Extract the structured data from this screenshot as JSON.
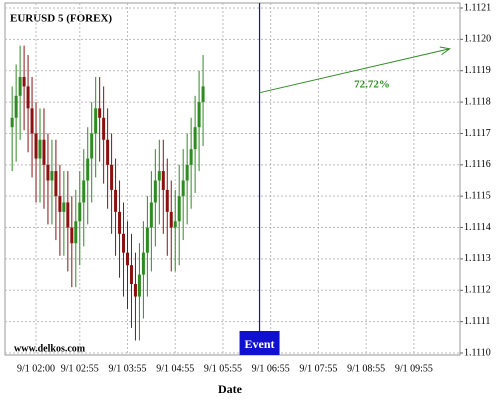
{
  "chart_data": {
    "type": "candlestick",
    "title": "EURUSD 5 (FOREX)",
    "source": "www.delkos.com",
    "x_label": "Date",
    "x": [
      "9/1 01:30",
      "9/1 01:35",
      "9/1 01:40",
      "9/1 01:45",
      "9/1 01:50",
      "9/1 01:55",
      "9/1 02:00",
      "9/1 02:05",
      "9/1 02:10",
      "9/1 02:15",
      "9/1 02:20",
      "9/1 02:25",
      "9/1 02:30",
      "9/1 02:35",
      "9/1 02:40",
      "9/1 02:45",
      "9/1 02:50",
      "9/1 02:55",
      "9/1 03:00",
      "9/1 03:05",
      "9/1 03:10",
      "9/1 03:15",
      "9/1 03:20",
      "9/1 03:25",
      "9/1 03:30",
      "9/1 03:35",
      "9/1 03:40",
      "9/1 03:45",
      "9/1 03:50",
      "9/1 03:55",
      "9/1 04:00",
      "9/1 04:05",
      "9/1 04:10",
      "9/1 04:15",
      "9/1 04:20",
      "9/1 04:25",
      "9/1 04:30",
      "9/1 04:35",
      "9/1 04:40",
      "9/1 04:45",
      "9/1 04:50",
      "9/1 04:55",
      "9/1 05:00",
      "9/1 05:05",
      "9/1 05:10",
      "9/1 05:15",
      "9/1 05:20",
      "9/1 05:25",
      "9/1 05:30"
    ],
    "open": [
      1.11172,
      1.11175,
      1.11182,
      1.11188,
      1.11185,
      1.11178,
      1.1117,
      1.11162,
      1.11168,
      1.1116,
      1.11155,
      1.11158,
      1.1115,
      1.11145,
      1.11148,
      1.1114,
      1.11135,
      1.11142,
      1.11148,
      1.11155,
      1.11162,
      1.1117,
      1.11178,
      1.11175,
      1.11168,
      1.1116,
      1.11152,
      1.11145,
      1.11138,
      1.11132,
      1.11128,
      1.11122,
      1.11118,
      1.11125,
      1.11132,
      1.1114,
      1.11148,
      1.11155,
      1.11158,
      1.11152,
      1.11145,
      1.1114,
      1.11142,
      1.1115,
      1.11155,
      1.1116,
      1.11165,
      1.11172,
      1.1118
    ],
    "high": [
      1.11185,
      1.11192,
      1.11198,
      1.11198,
      1.11195,
      1.11188,
      1.1118,
      1.11178,
      1.11178,
      1.1117,
      1.11168,
      1.11168,
      1.1116,
      1.11158,
      1.11158,
      1.1115,
      1.11152,
      1.11158,
      1.11165,
      1.11172,
      1.1118,
      1.11188,
      1.11188,
      1.11185,
      1.11178,
      1.1117,
      1.11162,
      1.11155,
      1.11148,
      1.11142,
      1.11138,
      1.11132,
      1.11135,
      1.11142,
      1.1115,
      1.11158,
      1.11165,
      1.11168,
      1.11168,
      1.11162,
      1.11155,
      1.11152,
      1.1116,
      1.11165,
      1.1117,
      1.11175,
      1.11182,
      1.1119,
      1.11195
    ],
    "low": [
      1.11158,
      1.11161,
      1.11168,
      1.11171,
      1.11164,
      1.11156,
      1.11148,
      1.11148,
      1.11146,
      1.11141,
      1.11141,
      1.11136,
      1.11131,
      1.11131,
      1.11126,
      1.11121,
      1.11121,
      1.11128,
      1.11134,
      1.11141,
      1.11148,
      1.11156,
      1.11161,
      1.11154,
      1.11146,
      1.11138,
      1.11131,
      1.11124,
      1.11118,
      1.11114,
      1.11108,
      1.11104,
      1.11104,
      1.11111,
      1.11118,
      1.11126,
      1.11134,
      1.11141,
      1.11138,
      1.11131,
      1.11126,
      1.11126,
      1.11128,
      1.11136,
      1.11141,
      1.11146,
      1.11151,
      1.11158,
      1.11166
    ],
    "close": [
      1.11175,
      1.11182,
      1.11188,
      1.11185,
      1.11178,
      1.1117,
      1.11162,
      1.11168,
      1.1116,
      1.11155,
      1.11158,
      1.1115,
      1.11145,
      1.11148,
      1.1114,
      1.11135,
      1.11142,
      1.11148,
      1.11155,
      1.11162,
      1.1117,
      1.11178,
      1.11175,
      1.11168,
      1.1116,
      1.11152,
      1.11145,
      1.11138,
      1.11132,
      1.11128,
      1.11122,
      1.11118,
      1.11125,
      1.11132,
      1.1114,
      1.11148,
      1.11155,
      1.11158,
      1.11152,
      1.11145,
      1.1114,
      1.11142,
      1.1115,
      1.11155,
      1.1116,
      1.11165,
      1.11172,
      1.1118,
      1.11185
    ],
    "up_color": "#2e8b22",
    "down_color": "#8b1010",
    "xlim": [
      "9/1 01:21",
      "9/1 10:53"
    ],
    "xticks": [
      "9/1 02:00",
      "9/1 02:55",
      "9/1 03:55",
      "9/1 04:55",
      "9/1 05:55",
      "9/1 06:55",
      "9/1 07:55",
      "9/1 08:55",
      "9/1 09:55"
    ],
    "ylim": [
      1.111,
      1.1121
    ],
    "yticks": [
      {
        "value": 1.111,
        "label": "1.1110"
      },
      1.1111,
      1.1112,
      1.1113,
      1.1114,
      1.1115,
      1.1116,
      1.1117,
      1.1118,
      1.1119,
      {
        "value": 1.112,
        "label": "1.1120"
      },
      1.1121
    ],
    "grid": true,
    "event": {
      "x": "9/1 06:41",
      "label": "Event",
      "color": "#1010d0"
    },
    "forecast": {
      "from": [
        "9/1 06:41",
        1.11183
      ],
      "to": [
        "9/1 10:40",
        1.11197
      ],
      "label": "72.72%",
      "color": "#2e8b22"
    }
  }
}
